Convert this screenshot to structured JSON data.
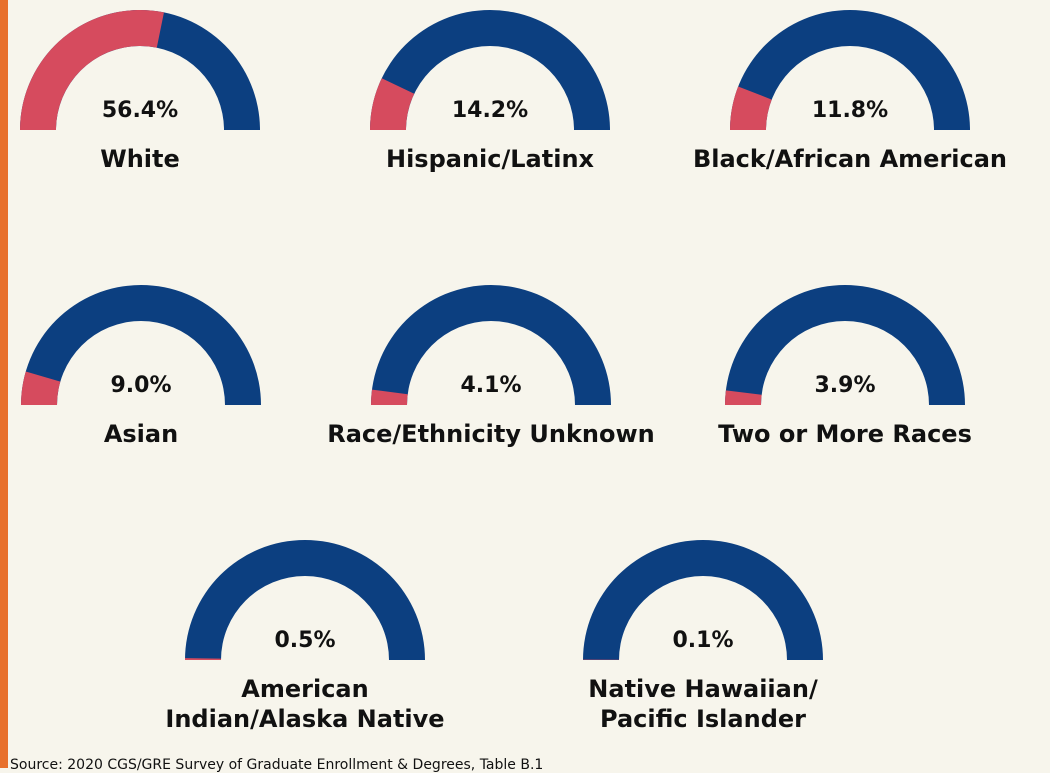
{
  "chart_data": {
    "type": "gauge",
    "categories": [
      "White",
      "Hispanic/Latinx",
      "Black/African American",
      "Asian",
      "Race/Ethnicity Unknown",
      "Two or More Races",
      "American\nIndian/Alaska Native",
      "Native Hawaiian/\nPacific Islander"
    ],
    "values": [
      56.4,
      14.2,
      11.8,
      9.0,
      4.1,
      3.9,
      0.5,
      0.1
    ],
    "value_labels": [
      "56.4%",
      "14.2%",
      "11.8%",
      "9.0%",
      "4.1%",
      "3.9%",
      "0.5%",
      "0.1%"
    ],
    "ylim": [
      0,
      100
    ],
    "color": "#d64b5e",
    "track_color": "#0c3f80",
    "source": "Source: 2020 CGS/GRE Survey of Graduate Enrollment & Degrees, Table B.1"
  }
}
